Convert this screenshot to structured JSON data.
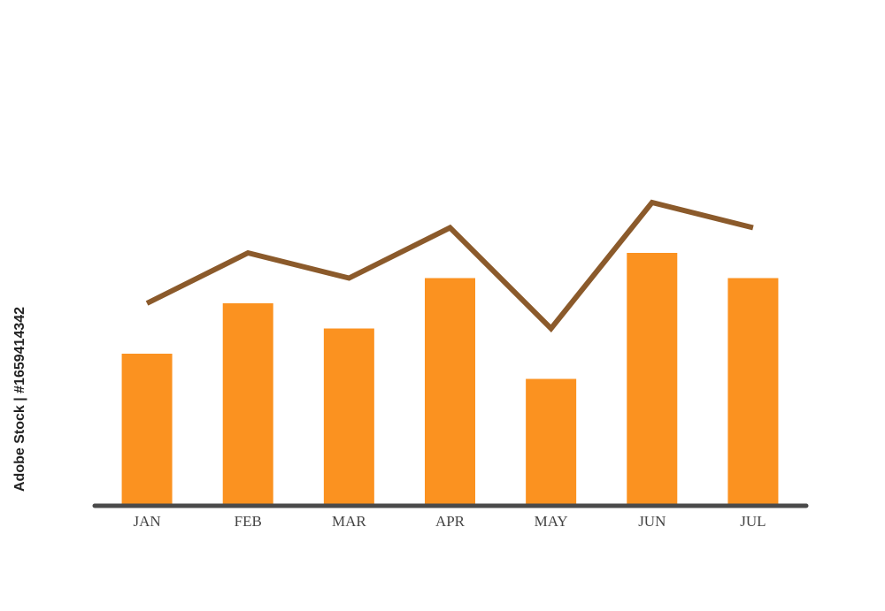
{
  "chart_data": {
    "type": "combo",
    "categories": [
      "JAN",
      "FEB",
      "MAR",
      "APR",
      "MAY",
      "JUN",
      "JUL"
    ],
    "series": [
      {
        "type": "bar",
        "color": "#fb9220",
        "values": [
          6,
          8,
          7,
          9,
          5,
          10,
          9
        ]
      },
      {
        "type": "line",
        "color": "#8b5a2b",
        "values": [
          8,
          10,
          9,
          11,
          7,
          12,
          11
        ]
      }
    ],
    "ylim": [
      0,
      20
    ]
  },
  "watermark": "Adobe Stock | #1659414342"
}
